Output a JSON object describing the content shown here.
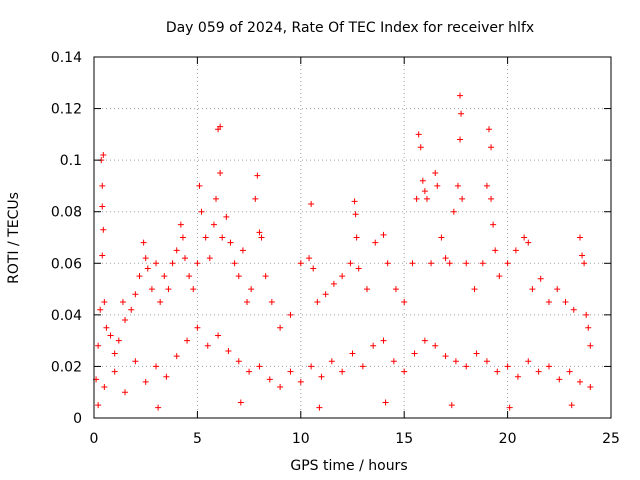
{
  "chart_data": {
    "type": "scatter",
    "title": "Day 059 of 2024, Rate Of TEC Index for receiver hlfx",
    "xlabel": "GPS time / hours",
    "ylabel": "ROTI / TECUs",
    "xlim": [
      0,
      25
    ],
    "ylim": [
      0,
      0.14
    ],
    "xticks": [
      0,
      5,
      10,
      15,
      20,
      25
    ],
    "xtick_labels": [
      "0",
      "5",
      "10",
      "15",
      "20",
      "25"
    ],
    "yticks": [
      0,
      0.02,
      0.04,
      0.06,
      0.08,
      0.1,
      0.12,
      0.14
    ],
    "ytick_labels": [
      "0",
      "0.02",
      "0.04",
      "0.06",
      "0.08",
      "0.1",
      "0.12",
      "0.14"
    ],
    "grid": true,
    "marker": "plus",
    "color": "#ff0000",
    "series": [
      {
        "name": "ROTI",
        "points": [
          [
            0.1,
            0.015
          ],
          [
            0.2,
            0.028
          ],
          [
            0.3,
            0.042
          ],
          [
            0.35,
            0.1
          ],
          [
            0.4,
            0.09
          ],
          [
            0.45,
            0.102
          ],
          [
            0.4,
            0.082
          ],
          [
            0.45,
            0.073
          ],
          [
            0.4,
            0.063
          ],
          [
            0.5,
            0.045
          ],
          [
            0.6,
            0.035
          ],
          [
            0.8,
            0.032
          ],
          [
            1.0,
            0.025
          ],
          [
            1.2,
            0.03
          ],
          [
            1.4,
            0.045
          ],
          [
            1.5,
            0.038
          ],
          [
            1.8,
            0.042
          ],
          [
            2.0,
            0.048
          ],
          [
            2.2,
            0.055
          ],
          [
            2.4,
            0.068
          ],
          [
            2.5,
            0.062
          ],
          [
            2.6,
            0.058
          ],
          [
            2.8,
            0.05
          ],
          [
            3.0,
            0.06
          ],
          [
            3.2,
            0.045
          ],
          [
            3.4,
            0.055
          ],
          [
            3.6,
            0.05
          ],
          [
            3.8,
            0.06
          ],
          [
            4.0,
            0.065
          ],
          [
            4.2,
            0.075
          ],
          [
            4.3,
            0.07
          ],
          [
            4.4,
            0.062
          ],
          [
            4.6,
            0.055
          ],
          [
            4.8,
            0.05
          ],
          [
            5.0,
            0.06
          ],
          [
            5.1,
            0.09
          ],
          [
            5.2,
            0.08
          ],
          [
            5.4,
            0.07
          ],
          [
            5.6,
            0.062
          ],
          [
            5.8,
            0.075
          ],
          [
            5.9,
            0.085
          ],
          [
            6.0,
            0.112
          ],
          [
            6.1,
            0.113
          ],
          [
            6.1,
            0.095
          ],
          [
            6.2,
            0.07
          ],
          [
            6.4,
            0.078
          ],
          [
            6.6,
            0.068
          ],
          [
            6.8,
            0.06
          ],
          [
            7.0,
            0.055
          ],
          [
            7.2,
            0.065
          ],
          [
            7.4,
            0.045
          ],
          [
            7.6,
            0.05
          ],
          [
            7.8,
            0.085
          ],
          [
            7.9,
            0.094
          ],
          [
            8.0,
            0.072
          ],
          [
            8.1,
            0.07
          ],
          [
            8.3,
            0.055
          ],
          [
            8.6,
            0.045
          ],
          [
            9.0,
            0.035
          ],
          [
            9.5,
            0.04
          ],
          [
            10.0,
            0.06
          ],
          [
            10.4,
            0.062
          ],
          [
            10.5,
            0.083
          ],
          [
            10.6,
            0.058
          ],
          [
            10.8,
            0.045
          ],
          [
            11.2,
            0.048
          ],
          [
            11.6,
            0.052
          ],
          [
            12.0,
            0.055
          ],
          [
            12.4,
            0.06
          ],
          [
            12.6,
            0.084
          ],
          [
            12.65,
            0.079
          ],
          [
            12.7,
            0.07
          ],
          [
            12.8,
            0.058
          ],
          [
            13.2,
            0.05
          ],
          [
            13.6,
            0.068
          ],
          [
            14.0,
            0.071
          ],
          [
            14.2,
            0.06
          ],
          [
            14.6,
            0.05
          ],
          [
            15.0,
            0.045
          ],
          [
            15.4,
            0.06
          ],
          [
            15.6,
            0.085
          ],
          [
            15.7,
            0.11
          ],
          [
            15.8,
            0.105
          ],
          [
            15.9,
            0.092
          ],
          [
            16.0,
            0.088
          ],
          [
            16.1,
            0.085
          ],
          [
            16.3,
            0.06
          ],
          [
            16.5,
            0.095
          ],
          [
            16.6,
            0.09
          ],
          [
            16.8,
            0.07
          ],
          [
            17.0,
            0.062
          ],
          [
            17.2,
            0.06
          ],
          [
            17.4,
            0.08
          ],
          [
            17.6,
            0.09
          ],
          [
            17.7,
            0.125
          ],
          [
            17.75,
            0.118
          ],
          [
            17.7,
            0.108
          ],
          [
            17.8,
            0.085
          ],
          [
            18.0,
            0.06
          ],
          [
            18.4,
            0.05
          ],
          [
            18.8,
            0.06
          ],
          [
            19.0,
            0.09
          ],
          [
            19.1,
            0.112
          ],
          [
            19.2,
            0.105
          ],
          [
            19.2,
            0.085
          ],
          [
            19.3,
            0.075
          ],
          [
            19.4,
            0.065
          ],
          [
            19.6,
            0.055
          ],
          [
            20.0,
            0.06
          ],
          [
            20.4,
            0.065
          ],
          [
            20.8,
            0.07
          ],
          [
            21.0,
            0.068
          ],
          [
            21.2,
            0.05
          ],
          [
            21.6,
            0.054
          ],
          [
            22.0,
            0.045
          ],
          [
            22.4,
            0.05
          ],
          [
            22.8,
            0.045
          ],
          [
            23.2,
            0.042
          ],
          [
            23.5,
            0.07
          ],
          [
            23.6,
            0.063
          ],
          [
            23.7,
            0.06
          ],
          [
            23.8,
            0.04
          ],
          [
            23.9,
            0.035
          ],
          [
            24.0,
            0.028
          ],
          [
            0.5,
            0.012
          ],
          [
            1.0,
            0.018
          ],
          [
            1.5,
            0.01
          ],
          [
            2.0,
            0.022
          ],
          [
            2.5,
            0.014
          ],
          [
            3.0,
            0.02
          ],
          [
            3.5,
            0.016
          ],
          [
            4.0,
            0.024
          ],
          [
            4.5,
            0.03
          ],
          [
            5.0,
            0.035
          ],
          [
            5.5,
            0.028
          ],
          [
            6.0,
            0.032
          ],
          [
            6.5,
            0.026
          ],
          [
            7.0,
            0.022
          ],
          [
            7.5,
            0.018
          ],
          [
            8.0,
            0.02
          ],
          [
            8.5,
            0.015
          ],
          [
            9.0,
            0.012
          ],
          [
            9.5,
            0.018
          ],
          [
            10.0,
            0.014
          ],
          [
            10.5,
            0.02
          ],
          [
            11.0,
            0.016
          ],
          [
            11.5,
            0.022
          ],
          [
            12.0,
            0.018
          ],
          [
            12.5,
            0.025
          ],
          [
            13.0,
            0.02
          ],
          [
            13.5,
            0.028
          ],
          [
            14.0,
            0.03
          ],
          [
            14.5,
            0.022
          ],
          [
            15.0,
            0.018
          ],
          [
            15.5,
            0.025
          ],
          [
            16.0,
            0.03
          ],
          [
            16.5,
            0.028
          ],
          [
            17.0,
            0.024
          ],
          [
            17.5,
            0.022
          ],
          [
            18.0,
            0.02
          ],
          [
            18.5,
            0.025
          ],
          [
            19.0,
            0.022
          ],
          [
            19.5,
            0.018
          ],
          [
            20.0,
            0.02
          ],
          [
            20.5,
            0.016
          ],
          [
            21.0,
            0.022
          ],
          [
            21.5,
            0.018
          ],
          [
            22.0,
            0.02
          ],
          [
            22.5,
            0.015
          ],
          [
            23.0,
            0.018
          ],
          [
            23.5,
            0.014
          ],
          [
            24.0,
            0.012
          ],
          [
            0.2,
            0.005
          ],
          [
            3.1,
            0.004
          ],
          [
            7.1,
            0.006
          ],
          [
            10.9,
            0.004
          ],
          [
            14.1,
            0.006
          ],
          [
            17.3,
            0.005
          ],
          [
            20.1,
            0.004
          ],
          [
            23.1,
            0.005
          ]
        ]
      }
    ]
  }
}
